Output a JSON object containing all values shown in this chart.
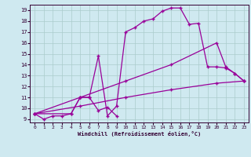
{
  "xlabel": "Windchill (Refroidissement éolien,°C)",
  "background_color": "#cfe9f0",
  "grid_color": "#aacccc",
  "line_color": "#990099",
  "xlim": [
    -0.5,
    23.5
  ],
  "ylim": [
    8.7,
    19.5
  ],
  "xticks": [
    0,
    1,
    2,
    3,
    4,
    5,
    6,
    7,
    8,
    9,
    10,
    11,
    12,
    13,
    14,
    15,
    16,
    17,
    18,
    19,
    20,
    21,
    22,
    23
  ],
  "yticks": [
    9,
    10,
    11,
    12,
    13,
    14,
    15,
    16,
    17,
    18,
    19
  ],
  "line1_x": [
    0,
    1,
    2,
    3,
    4,
    5,
    6,
    7,
    8,
    9
  ],
  "line1_y": [
    9.5,
    9.0,
    9.3,
    9.3,
    9.5,
    11.0,
    11.0,
    9.8,
    10.1,
    9.3
  ],
  "line2_x": [
    0,
    4,
    5,
    6,
    7,
    8,
    9,
    10,
    11,
    12,
    13,
    14,
    15,
    16,
    17,
    18,
    19,
    20,
    21,
    22,
    23
  ],
  "line2_y": [
    9.5,
    9.5,
    11.0,
    11.0,
    14.8,
    9.3,
    10.2,
    17.0,
    17.4,
    18.0,
    18.2,
    18.9,
    19.2,
    19.2,
    17.7,
    17.8,
    13.8,
    13.8,
    13.7,
    13.2,
    12.5
  ],
  "line3_x": [
    0,
    5,
    10,
    15,
    20,
    21,
    22,
    23
  ],
  "line3_y": [
    9.5,
    11.0,
    12.5,
    14.0,
    16.0,
    13.8,
    13.2,
    12.5
  ],
  "line4_x": [
    0,
    5,
    10,
    15,
    20,
    23
  ],
  "line4_y": [
    9.5,
    10.2,
    11.0,
    11.7,
    12.3,
    12.5
  ]
}
